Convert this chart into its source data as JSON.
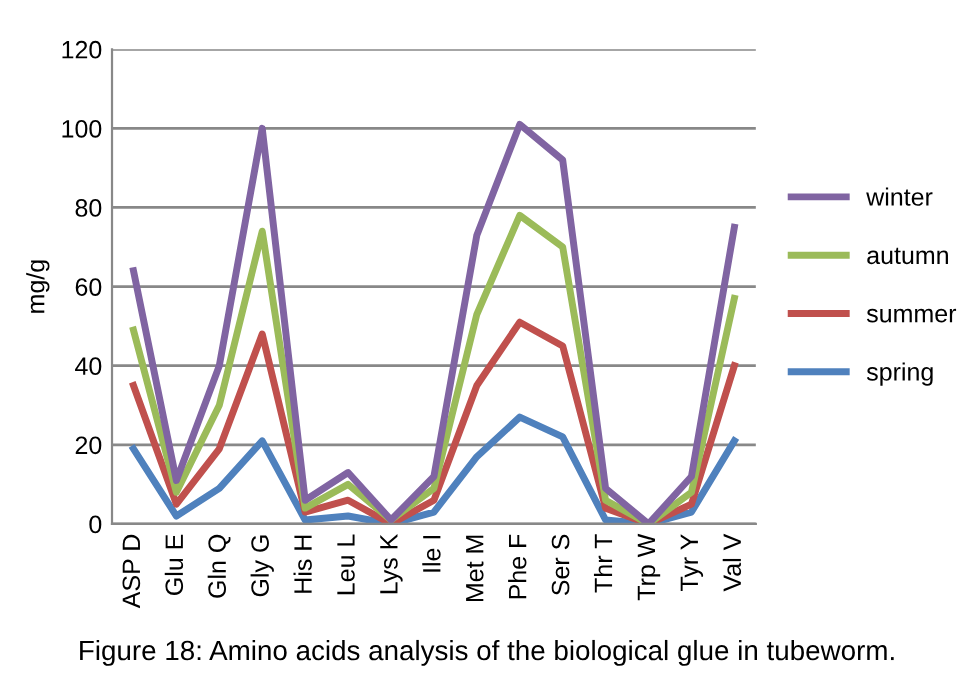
{
  "chart_data": {
    "type": "line",
    "ylabel": "mg/g",
    "categories": [
      "ASP D",
      "Glu E",
      "Gln Q",
      "Gly G",
      "His H",
      "Leu L",
      "Lys K",
      "Ile I",
      "Met M",
      "Phe F",
      "Ser S",
      "Thr T",
      "Trp W",
      "Tyr Y",
      "Val V"
    ],
    "series": [
      {
        "name": "winter",
        "color": "#8064a2",
        "values": [
          64,
          11,
          40,
          100,
          6,
          13,
          1,
          12,
          73,
          101,
          92,
          9,
          0,
          12,
          75
        ]
      },
      {
        "name": "autumn",
        "color": "#9bbb59",
        "values": [
          49,
          8,
          30,
          74,
          4,
          10,
          1,
          9,
          53,
          78,
          70,
          6,
          0,
          8,
          57
        ]
      },
      {
        "name": "summer",
        "color": "#c0504d",
        "values": [
          35,
          5,
          19,
          48,
          3,
          6,
          0,
          6,
          35,
          51,
          45,
          4,
          0,
          5,
          40
        ]
      },
      {
        "name": "spring",
        "color": "#4f81bd",
        "values": [
          19,
          2,
          9,
          21,
          1,
          2,
          0,
          3,
          17,
          27,
          22,
          1,
          0,
          3,
          21
        ]
      }
    ],
    "ylim": [
      0,
      120
    ],
    "yticks": [
      0,
      20,
      40,
      60,
      80,
      100,
      120
    ],
    "grid": "y",
    "legend": "right",
    "marker": "none",
    "annotations": [
      "Figure 18: Amino acids analysis of the biological glue in tubeworm."
    ]
  }
}
